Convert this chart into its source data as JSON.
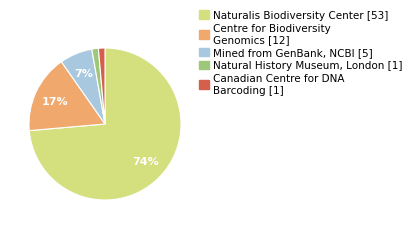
{
  "labels": [
    "Naturalis Biodiversity Center [53]",
    "Centre for Biodiversity\nGenomics [12]",
    "Mined from GenBank, NCBI [5]",
    "Natural History Museum, London [1]",
    "Canadian Centre for DNA\nBarcoding [1]"
  ],
  "values": [
    53,
    12,
    5,
    1,
    1
  ],
  "colors": [
    "#d4df7e",
    "#f0a86c",
    "#a8c8e0",
    "#9dc87a",
    "#d45f4a"
  ],
  "startangle": 90,
  "background_color": "#ffffff",
  "fontsize": 7.5
}
